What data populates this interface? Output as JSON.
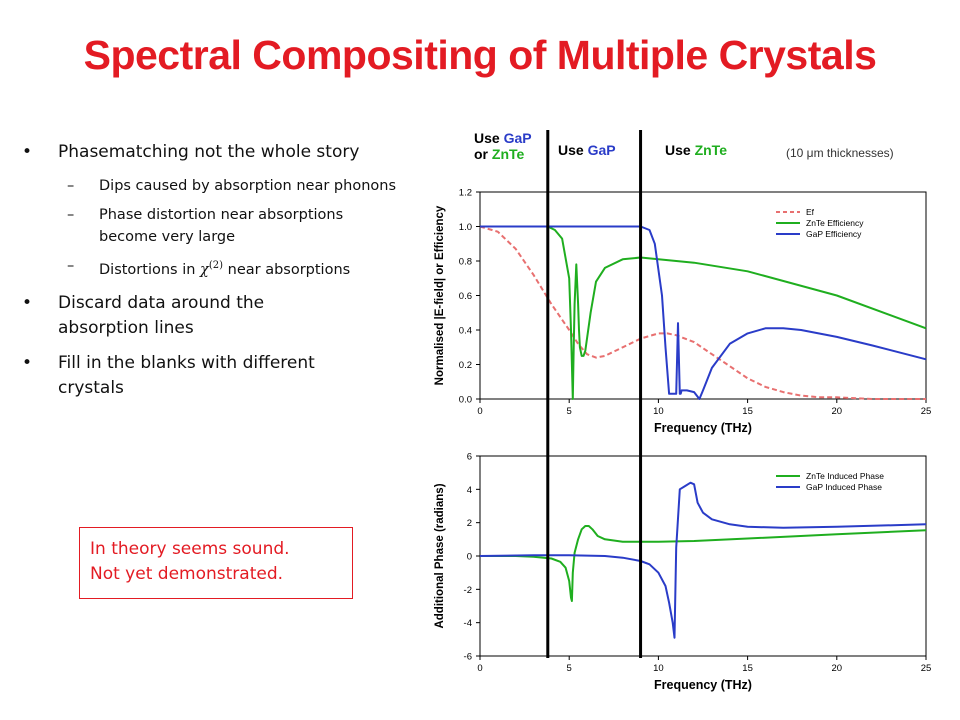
{
  "slide": {
    "title": "Spectral Compositing of Multiple Crystals",
    "bullets": {
      "b1": "Phasematching not the whole story",
      "b1_subs": [
        "Dips caused by absorption near phonons",
        "Phase distortion near absorptions become very large",
        "Distortions in"
      ],
      "chi_symbol": "χ",
      "chi_superscript": "(2)",
      "sub3_tail": "near absorptions",
      "b2": "Discard data around the absorption lines",
      "b3": "Fill in the blanks with different crystals"
    },
    "note": {
      "line1": "In theory seems sound.",
      "line2": "Not yet demonstrated."
    }
  },
  "regions": {
    "r1_use": "Use",
    "r1_gap": "GaP",
    "r1_or": "or",
    "r1_znte": "ZnTe",
    "r2_use": "Use",
    "r2_gap": "GaP",
    "r3_use": "Use",
    "r3_znte": "ZnTe",
    "thickness_note": "(10 μm thicknesses)"
  },
  "colors": {
    "title_red": "#e31b23",
    "gap_blue": "#2a3cc8",
    "znte_green": "#1fae1f",
    "ef_pink": "#e87070"
  },
  "chart_data": [
    {
      "type": "line",
      "xlabel": "Frequency (THz)",
      "ylabel": "Normalised |E-field| or Efficiency",
      "xlim": [
        0,
        25
      ],
      "ylim": [
        0,
        1.2
      ],
      "xticks": [
        "0",
        "5",
        "10",
        "15",
        "20",
        "25"
      ],
      "yticks": [
        "0.0",
        "0.2",
        "0.4",
        "0.6",
        "0.8",
        "1.0",
        "1.2"
      ],
      "legend_position": "top-right",
      "vlines": [
        3.8,
        9.0
      ],
      "series": [
        {
          "name": "Ef",
          "color": "#e87070",
          "dash": true,
          "x": [
            0,
            1,
            2,
            3,
            4,
            5,
            5.5,
            6,
            6.5,
            7,
            8,
            9,
            10,
            10.5,
            11,
            12,
            13,
            14,
            15,
            16,
            17,
            18,
            19,
            20,
            22,
            25
          ],
          "y": [
            1.0,
            0.97,
            0.87,
            0.72,
            0.55,
            0.4,
            0.32,
            0.26,
            0.24,
            0.25,
            0.3,
            0.35,
            0.38,
            0.38,
            0.37,
            0.33,
            0.26,
            0.19,
            0.12,
            0.07,
            0.04,
            0.02,
            0.01,
            0.01,
            0.0,
            0.0
          ]
        },
        {
          "name": "ZnTe Efficiency",
          "color": "#1fae1f",
          "dash": false,
          "x": [
            0,
            3.8,
            4.2,
            4.6,
            5.0,
            5.1,
            5.2,
            5.25,
            5.3,
            5.4,
            5.5,
            5.55,
            5.6,
            5.7,
            5.8,
            5.9,
            6.0,
            6.2,
            6.5,
            7,
            8,
            9,
            10,
            12,
            15,
            20,
            25
          ],
          "y": [
            1.0,
            1.0,
            0.98,
            0.93,
            0.7,
            0.4,
            0.0,
            0.3,
            0.55,
            0.78,
            0.55,
            0.4,
            0.3,
            0.25,
            0.25,
            0.28,
            0.35,
            0.5,
            0.68,
            0.76,
            0.81,
            0.82,
            0.81,
            0.79,
            0.74,
            0.6,
            0.41
          ]
        },
        {
          "name": "GaP Efficiency",
          "color": "#2a3cc8",
          "dash": false,
          "x": [
            0,
            8,
            9.0,
            9.5,
            9.8,
            10.0,
            10.2,
            10.4,
            10.6,
            10.8,
            11.0,
            11.1,
            11.2,
            11.25,
            11.3,
            11.4,
            11.6,
            12.0,
            12.3,
            12.5,
            13,
            14,
            15,
            16,
            17,
            18,
            20,
            22,
            25
          ],
          "y": [
            1.0,
            1.0,
            1.0,
            0.98,
            0.9,
            0.75,
            0.6,
            0.3,
            0.03,
            0.03,
            0.03,
            0.44,
            0.03,
            0.03,
            0.05,
            0.05,
            0.05,
            0.04,
            0.0,
            0.05,
            0.18,
            0.32,
            0.38,
            0.41,
            0.41,
            0.4,
            0.36,
            0.31,
            0.23
          ]
        }
      ]
    },
    {
      "type": "line",
      "xlabel": "Frequency (THz)",
      "ylabel": "Additional Phase (radians)",
      "xlim": [
        0,
        25
      ],
      "ylim": [
        -6,
        6
      ],
      "xticks": [
        "0",
        "5",
        "10",
        "15",
        "20",
        "25"
      ],
      "yticks": [
        "-6",
        "-4",
        "-2",
        "0",
        "2",
        "4",
        "6"
      ],
      "legend_position": "top-right",
      "vlines": [
        3.8,
        9.0
      ],
      "series": [
        {
          "name": "ZnTe Induced Phase",
          "color": "#1fae1f",
          "dash": false,
          "x": [
            0,
            2,
            3,
            4,
            4.5,
            4.8,
            5.0,
            5.1,
            5.15,
            5.2,
            5.3,
            5.5,
            5.7,
            5.9,
            6.1,
            6.3,
            6.6,
            7,
            8,
            9,
            10,
            12,
            15,
            20,
            25
          ],
          "y": [
            0.0,
            0.0,
            -0.05,
            -0.15,
            -0.35,
            -0.7,
            -1.5,
            -2.5,
            -2.7,
            -1.0,
            0.2,
            1.0,
            1.6,
            1.8,
            1.8,
            1.6,
            1.2,
            1.0,
            0.85,
            0.85,
            0.85,
            0.9,
            1.05,
            1.3,
            1.55
          ]
        },
        {
          "name": "GaP Induced Phase",
          "color": "#2a3cc8",
          "dash": false,
          "x": [
            0,
            3,
            5,
            7,
            8,
            9,
            9.5,
            10,
            10.4,
            10.6,
            10.8,
            10.9,
            11.0,
            11.2,
            11.5,
            11.8,
            12.0,
            12.2,
            12.5,
            13,
            14,
            15,
            17,
            20,
            25
          ],
          "y": [
            0.0,
            0.05,
            0.05,
            0.0,
            -0.1,
            -0.3,
            -0.5,
            -1.0,
            -1.8,
            -2.8,
            -4.0,
            -4.9,
            0.5,
            4.0,
            4.2,
            4.4,
            4.3,
            3.2,
            2.6,
            2.2,
            1.9,
            1.75,
            1.7,
            1.75,
            1.9
          ]
        }
      ]
    }
  ]
}
